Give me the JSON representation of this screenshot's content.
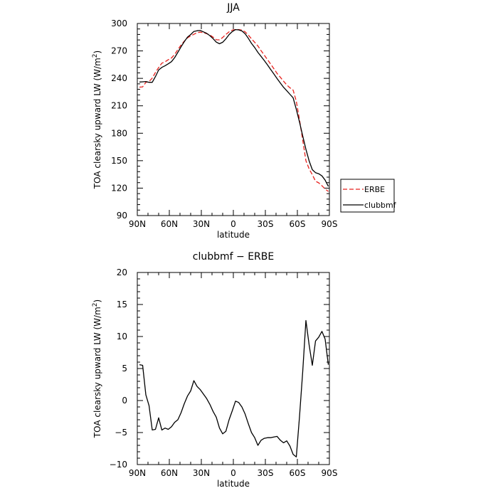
{
  "chart_data": [
    {
      "type": "line",
      "title": "JJA",
      "xlabel": "latitude",
      "ylabel": "TOA clearsky upward LW (W/m²)",
      "ylabel_base": "TOA clearsky upward LW (W/m",
      "ylabel_sup": "2",
      "ylabel_end": ")",
      "xlim": [
        90,
        -90
      ],
      "ylim": [
        90,
        300
      ],
      "x_ticks": [
        {
          "value": 90,
          "label": "90N"
        },
        {
          "value": 60,
          "label": "60N"
        },
        {
          "value": 30,
          "label": "30N"
        },
        {
          "value": 0,
          "label": "0"
        },
        {
          "value": -30,
          "label": "30S"
        },
        {
          "value": -60,
          "label": "60S"
        },
        {
          "value": -90,
          "label": "90S"
        }
      ],
      "y_ticks": [
        90,
        120,
        150,
        180,
        210,
        240,
        270,
        300
      ],
      "legend_position": "right",
      "series": [
        {
          "name": "ERBE",
          "color": "#e8211d",
          "dash": "dashed",
          "x": [
            88,
            85,
            82,
            79,
            76,
            73,
            70,
            67,
            64,
            61,
            58,
            55,
            52,
            49,
            46,
            43,
            40,
            37,
            34,
            31,
            28,
            25,
            22,
            19,
            16,
            13,
            10,
            7,
            4,
            1,
            -2,
            -5,
            -8,
            -11,
            -14,
            -17,
            -20,
            -23,
            -26,
            -29,
            -32,
            -35,
            -38,
            -41,
            -44,
            -47,
            -50,
            -53,
            -56,
            -59,
            -62,
            -65,
            -68,
            -71,
            -74,
            -77,
            -80,
            -83,
            -86,
            -89
          ],
          "y": [
            230.4,
            230.7,
            235.6,
            236.5,
            240.3,
            246.5,
            251.8,
            256.6,
            258.1,
            260.4,
            262.3,
            266.1,
            271.5,
            276.4,
            280.6,
            284.3,
            286.4,
            288.2,
            289.9,
            290.6,
            289.8,
            288.9,
            287.3,
            285.1,
            282.2,
            282.1,
            284.7,
            288.0,
            290.9,
            292.7,
            293.4,
            293.3,
            292.8,
            290.9,
            287.4,
            283.2,
            279.5,
            275.4,
            270.2,
            265.4,
            260.5,
            255.5,
            250.5,
            245.3,
            241.2,
            236.9,
            232.9,
            229.7,
            227.2,
            214.9,
            194.7,
            172.6,
            150.0,
            141.1,
            134.7,
            127.6,
            125.8,
            122.6,
            119.1,
            116.4
          ]
        },
        {
          "name": "clubbmf",
          "color": "#000000",
          "dash": "solid",
          "x": [
            88,
            85,
            82,
            79,
            76,
            73,
            70,
            67,
            64,
            61,
            58,
            55,
            52,
            49,
            46,
            43,
            40,
            37,
            34,
            31,
            28,
            25,
            22,
            19,
            16,
            13,
            10,
            7,
            4,
            1,
            -2,
            -5,
            -8,
            -11,
            -14,
            -17,
            -20,
            -23,
            -26,
            -29,
            -32,
            -35,
            -38,
            -41,
            -44,
            -47,
            -50,
            -53,
            -56,
            -59,
            -62,
            -65,
            -68,
            -71,
            -74,
            -77,
            -80,
            -83,
            -86,
            -89
          ],
          "y": [
            236.0,
            236.2,
            236.5,
            235.7,
            235.7,
            242.0,
            249.1,
            252.0,
            253.8,
            255.9,
            258.2,
            262.7,
            268.5,
            274.5,
            280.1,
            285.0,
            287.9,
            291.3,
            292.1,
            292.3,
            290.8,
            289.2,
            286.7,
            283.4,
            279.6,
            277.8,
            279.5,
            283.2,
            287.9,
            291.1,
            293.3,
            293.0,
            291.8,
            288.8,
            283.8,
            278.2,
            273.7,
            268.4,
            264.0,
            259.5,
            254.7,
            249.7,
            244.8,
            239.7,
            235.0,
            230.3,
            226.6,
            222.6,
            218.8,
            206.1,
            192.2,
            177.1,
            162.5,
            149.8,
            140.2,
            136.9,
            135.7,
            133.4,
            128.7,
            122.0
          ]
        }
      ]
    },
    {
      "type": "line",
      "title": "clubbmf − ERBE",
      "xlabel": "latitude",
      "ylabel": "TOA clearsky upward LW (W/m²)",
      "ylabel_base": "TOA clearsky upward LW (W/m",
      "ylabel_sup": "2",
      "ylabel_end": ")",
      "xlim": [
        90,
        -90
      ],
      "ylim": [
        -10,
        20
      ],
      "x_ticks": [
        {
          "value": 90,
          "label": "90N"
        },
        {
          "value": 60,
          "label": "60N"
        },
        {
          "value": 30,
          "label": "30N"
        },
        {
          "value": 0,
          "label": "0"
        },
        {
          "value": -30,
          "label": "30S"
        },
        {
          "value": -60,
          "label": "60S"
        },
        {
          "value": -90,
          "label": "90S"
        }
      ],
      "y_ticks": [
        -10,
        -5,
        0,
        5,
        10,
        15,
        20
      ],
      "series": [
        {
          "color": "#000000",
          "dash": "solid",
          "x": [
            88,
            85,
            82,
            79,
            76,
            73,
            70,
            67,
            64,
            61,
            58,
            55,
            52,
            49,
            46,
            43,
            40,
            37,
            34,
            31,
            28,
            25,
            22,
            19,
            16,
            13,
            10,
            7,
            4,
            1,
            -2,
            -5,
            -8,
            -11,
            -14,
            -17,
            -20,
            -23,
            -26,
            -29,
            -32,
            -35,
            -38,
            -41,
            -44,
            -47,
            -50,
            -53,
            -56,
            -59,
            -62,
            -65,
            -68,
            -71,
            -74,
            -77,
            -80,
            -83,
            -86,
            -89
          ],
          "y": [
            5.6,
            5.5,
            0.9,
            -0.8,
            -4.6,
            -4.5,
            -2.7,
            -4.6,
            -4.3,
            -4.5,
            -4.1,
            -3.4,
            -3.0,
            -1.9,
            -0.5,
            0.7,
            1.5,
            3.1,
            2.2,
            1.7,
            1.0,
            0.3,
            -0.6,
            -1.7,
            -2.6,
            -4.3,
            -5.2,
            -4.8,
            -3.0,
            -1.6,
            -0.1,
            -0.3,
            -1.0,
            -2.1,
            -3.6,
            -5.0,
            -5.8,
            -7.0,
            -6.2,
            -5.9,
            -5.8,
            -5.8,
            -5.7,
            -5.6,
            -6.2,
            -6.6,
            -6.3,
            -7.1,
            -8.4,
            -8.8,
            -2.5,
            4.5,
            12.5,
            8.7,
            5.5,
            9.3,
            9.9,
            10.8,
            9.6,
            5.6
          ]
        }
      ]
    }
  ]
}
